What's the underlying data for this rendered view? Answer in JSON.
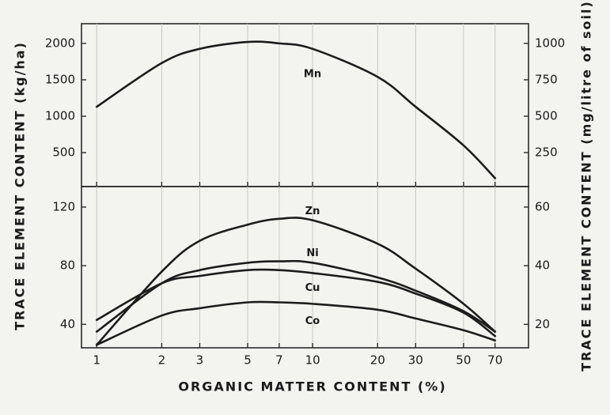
{
  "chart_data": [
    {
      "type": "line",
      "y_label": "TRACE ELEMENT CONTENT (kg/ha)",
      "y2_label": "TRACE ELEMENT CONTENT (mg/litre of soil)",
      "log_x": true,
      "grid": true,
      "xlim": [
        0.85,
        100
      ],
      "xticks": [
        1,
        2,
        3,
        5,
        7,
        10,
        20,
        30,
        50,
        70
      ],
      "ylim": [
        35,
        2270
      ],
      "yticks": [
        500,
        1000,
        1500,
        2000
      ],
      "y2lim": [
        17,
        1135
      ],
      "y2ticks": [
        250,
        500,
        750,
        1000
      ],
      "x": [
        1,
        2,
        3,
        5,
        7,
        10,
        20,
        30,
        50,
        70
      ],
      "series": [
        {
          "name": "Mn",
          "color": "#1c1c1c",
          "values": [
            1130,
            1730,
            1925,
            2020,
            2000,
            1925,
            1540,
            1130,
            600,
            150
          ]
        }
      ]
    },
    {
      "type": "line",
      "x_label": "ORGANIC MATTER CONTENT (%)",
      "log_x": true,
      "grid": true,
      "xlim": [
        0.85,
        100
      ],
      "xticks": [
        1,
        2,
        3,
        5,
        7,
        10,
        20,
        30,
        50,
        70
      ],
      "ylim": [
        24,
        134
      ],
      "yticks": [
        40,
        80,
        120
      ],
      "y2lim": [
        12,
        67
      ],
      "y2ticks": [
        20,
        40,
        60
      ],
      "x": [
        1,
        2,
        3,
        5,
        7,
        10,
        20,
        30,
        50,
        70
      ],
      "series": [
        {
          "name": "Zn",
          "color": "#1c1c1c",
          "values": [
            26,
            76,
            97,
            108,
            112,
            111,
            95,
            78,
            54,
            35
          ]
        },
        {
          "name": "Ni",
          "color": "#1c1c1c",
          "values": [
            35,
            68,
            77,
            82,
            83,
            82,
            72,
            63,
            49,
            35
          ]
        },
        {
          "name": "Cu",
          "color": "#1c1c1c",
          "values": [
            43,
            68,
            73,
            77,
            77,
            75,
            69,
            61,
            48,
            32
          ]
        },
        {
          "name": "Co",
          "color": "#1c1c1c",
          "values": [
            26,
            46,
            51,
            55,
            55,
            54,
            50,
            44,
            36,
            29
          ]
        }
      ]
    }
  ]
}
